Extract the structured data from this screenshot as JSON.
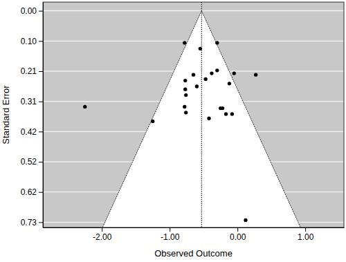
{
  "chart_data": {
    "type": "scatter",
    "x_label": "Observed Outcome",
    "y_label": "Standard Error",
    "x": [
      -0.78,
      -0.55,
      -0.3,
      -0.77,
      -0.65,
      -0.77,
      -0.76,
      -0.6,
      -0.47,
      -0.38,
      -0.3,
      -0.05,
      0.27,
      -0.12,
      -0.78,
      -0.76,
      -2.25,
      -1.25,
      -0.25,
      -0.22,
      -0.17,
      -0.08,
      -0.42,
      0.12
    ],
    "y": [
      0.11,
      0.13,
      0.11,
      0.24,
      0.22,
      0.27,
      0.29,
      0.26,
      0.235,
      0.215,
      0.205,
      0.215,
      0.22,
      0.25,
      0.33,
      0.35,
      0.33,
      0.38,
      0.335,
      0.335,
      0.355,
      0.355,
      0.37,
      0.72
    ],
    "estimate": -0.53,
    "xlim": [
      -2.87,
      1.57
    ],
    "ylim": [
      0.745,
      -0.03
    ],
    "xticks": [
      {
        "value": -2,
        "label": "-2.00"
      },
      {
        "value": -1,
        "label": "-1.00"
      },
      {
        "value": 0,
        "label": "0.00"
      },
      {
        "value": 1,
        "label": "1.00"
      }
    ],
    "yticks": [
      {
        "value": 0,
        "label": "0.00"
      },
      {
        "value": 0.1039,
        "label": "0.10"
      },
      {
        "value": 0.2077,
        "label": "0.21"
      },
      {
        "value": 0.3116,
        "label": "0.31"
      },
      {
        "value": 0.4154,
        "label": "0.42"
      },
      {
        "value": 0.5193,
        "label": "0.52"
      },
      {
        "value": 0.6231,
        "label": "0.62"
      },
      {
        "value": 0.727,
        "label": "0.73"
      }
    ],
    "grid": true,
    "color": "#000000",
    "marker": "circle"
  }
}
